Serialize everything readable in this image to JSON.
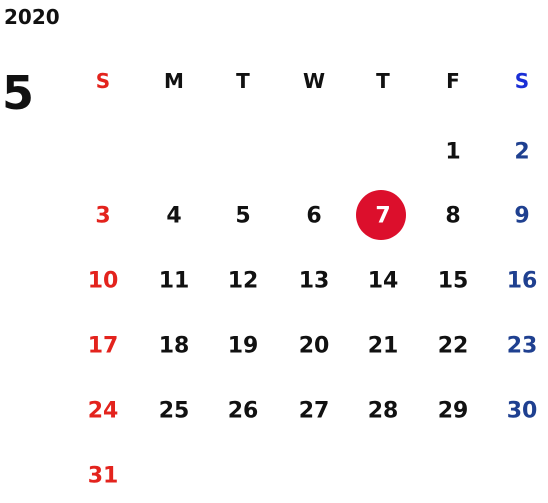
{
  "year": "2020",
  "month": "5",
  "weekdays": [
    "S",
    "M",
    "T",
    "W",
    "T",
    "F",
    "S"
  ],
  "weeks": [
    [
      null,
      null,
      null,
      null,
      null,
      1,
      2
    ],
    [
      3,
      4,
      5,
      6,
      7,
      8,
      9
    ],
    [
      10,
      11,
      12,
      13,
      14,
      15,
      16
    ],
    [
      17,
      18,
      19,
      20,
      21,
      22,
      23
    ],
    [
      24,
      25,
      26,
      27,
      28,
      29,
      30
    ],
    [
      31,
      null,
      null,
      null,
      null,
      null,
      null
    ]
  ],
  "highlighted_day": 7,
  "colors": {
    "sunday": "#e3231d",
    "saturday_header": "#1a2ed6",
    "saturday": "#1f4090",
    "weekday": "#111111",
    "highlight": "#dc0f2c",
    "highlight_text": "#ffffff"
  }
}
